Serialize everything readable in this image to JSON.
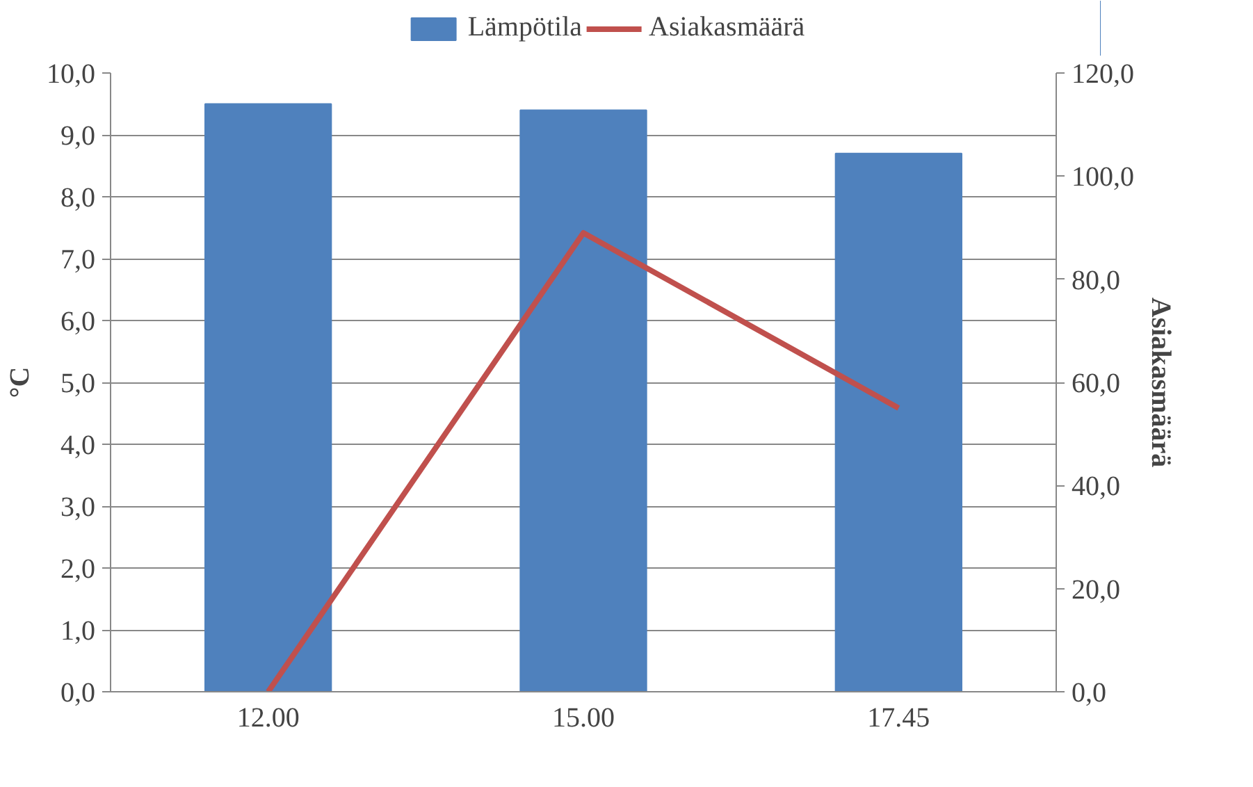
{
  "chart_data": {
    "type": "bar",
    "categories": [
      "12.00",
      "15.00",
      "17.45"
    ],
    "series": [
      {
        "name": "Lämpötila",
        "type": "bar",
        "color": "#4f81bd",
        "values": [
          9.5,
          9.4,
          8.7
        ]
      },
      {
        "name": "Asiakasmäärä",
        "type": "line",
        "axis": "y2",
        "color": "#c0504d",
        "values": [
          0,
          89,
          55
        ]
      }
    ],
    "ylabel": "°C",
    "y2label": "Asiakasmäärä",
    "ylim": [
      0,
      10
    ],
    "yticks": [
      {
        "value": 0,
        "label": "0,0"
      },
      {
        "value": 1,
        "label": "1,0"
      },
      {
        "value": 2,
        "label": "2,0"
      },
      {
        "value": 3,
        "label": "3,0"
      },
      {
        "value": 4,
        "label": "4,0"
      },
      {
        "value": 5,
        "label": "5,0"
      },
      {
        "value": 6,
        "label": "6,0"
      },
      {
        "value": 7,
        "label": "7,0"
      },
      {
        "value": 8,
        "label": "8,0"
      },
      {
        "value": 9,
        "label": "9,0"
      },
      {
        "value": 10,
        "label": "10,0"
      }
    ],
    "y2lim": [
      0,
      120
    ],
    "y2ticks": [
      {
        "value": 0,
        "label": "0,0"
      },
      {
        "value": 20,
        "label": "20,0"
      },
      {
        "value": 40,
        "label": "40,0"
      },
      {
        "value": 60,
        "label": "60,0"
      },
      {
        "value": 80,
        "label": "80,0"
      },
      {
        "value": 100,
        "label": "100,0"
      },
      {
        "value": 120,
        "label": "120,0"
      }
    ],
    "grid": "y",
    "legend": "top",
    "marker": "none",
    "line_style": "solid"
  }
}
